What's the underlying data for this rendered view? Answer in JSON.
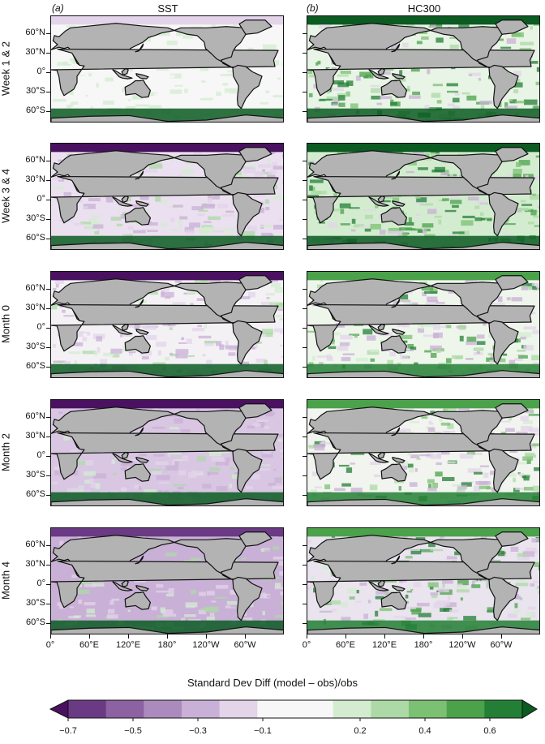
{
  "chart_data": {
    "type": "heatmap",
    "columns": [
      {
        "letter": "(a)",
        "title": "SST"
      },
      {
        "letter": "(b)",
        "title": "HC300"
      }
    ],
    "rows": [
      "Week 1 & 2",
      "Week 3 & 4",
      "Month 0",
      "Month 2",
      "Month 4"
    ],
    "lat_ticks": [
      "60°N",
      "30°N",
      "0°",
      "30°S",
      "60°S"
    ],
    "lat_values": [
      60,
      30,
      0,
      -30,
      -60
    ],
    "lon_ticks": [
      "0°",
      "60°E",
      "120°E",
      "180°",
      "120°W",
      "60°W"
    ],
    "lon_values": [
      0,
      60,
      120,
      180,
      240,
      300
    ],
    "colorbar": {
      "label": "Standard Dev Diff (model – obs)/obs",
      "tick_labels": [
        "−0.7",
        "−0.5",
        "−0.3",
        "−0.1",
        "0.2",
        "0.4",
        "0.6"
      ],
      "tick_values": [
        -0.7,
        -0.5,
        -0.3,
        -0.1,
        0.2,
        0.4,
        0.6
      ],
      "range": [
        -0.7,
        0.7
      ],
      "extend": "both",
      "colors": [
        "#4a1160",
        "#6b3a84",
        "#8c62a2",
        "#ab8bbe",
        "#c9b0d6",
        "#e3d4ea",
        "#f7f7f7",
        "#f7f7f7",
        "#d3ecd0",
        "#acd9a6",
        "#7cc073",
        "#4ba24b",
        "#237f35",
        "#0b5b22"
      ]
    },
    "panel_colors": {
      "land": "#b3b3b3",
      "coast": "#111111",
      "neutral": "#f4f4f4"
    }
  }
}
